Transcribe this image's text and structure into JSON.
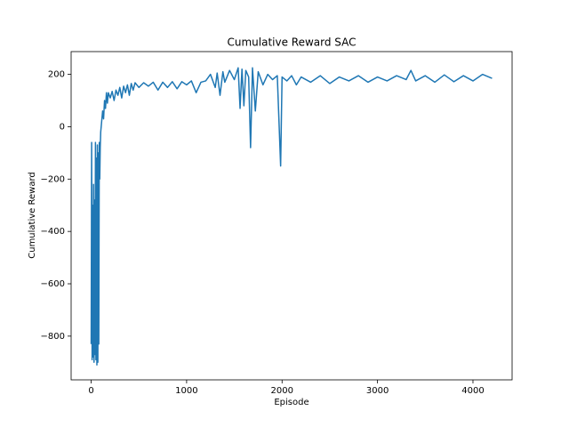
{
  "chart_data": {
    "type": "line",
    "title": "Cumulative Reward SAC",
    "x_label": "Episode",
    "y_label": "Cumulative Reward",
    "color": "#1f77b4",
    "grid": false,
    "x": [
      0,
      5,
      10,
      15,
      20,
      25,
      30,
      35,
      40,
      45,
      50,
      55,
      60,
      65,
      70,
      75,
      80,
      85,
      90,
      95,
      100,
      110,
      120,
      130,
      140,
      150,
      160,
      170,
      180,
      200,
      220,
      240,
      260,
      280,
      300,
      320,
      340,
      360,
      380,
      400,
      420,
      440,
      460,
      500,
      550,
      600,
      650,
      700,
      750,
      800,
      850,
      900,
      950,
      1000,
      1050,
      1100,
      1150,
      1200,
      1250,
      1300,
      1320,
      1350,
      1380,
      1400,
      1450,
      1500,
      1540,
      1560,
      1580,
      1600,
      1620,
      1650,
      1670,
      1690,
      1720,
      1750,
      1800,
      1850,
      1900,
      1950,
      1985,
      2000,
      2050,
      2100,
      2150,
      2200,
      2300,
      2400,
      2500,
      2600,
      2700,
      2800,
      2900,
      3000,
      3100,
      3200,
      3300,
      3350,
      3400,
      3500,
      3600,
      3700,
      3800,
      3900,
      4000,
      4100,
      4200
    ],
    "values": [
      -830,
      -60,
      -890,
      -300,
      -880,
      -220,
      -900,
      -280,
      -870,
      -60,
      -890,
      -120,
      -910,
      -70,
      -900,
      -100,
      -830,
      -60,
      -200,
      -80,
      -20,
      20,
      60,
      30,
      100,
      70,
      130,
      90,
      130,
      110,
      135,
      100,
      140,
      120,
      150,
      110,
      155,
      130,
      160,
      120,
      165,
      140,
      168,
      150,
      168,
      155,
      170,
      140,
      170,
      150,
      172,
      145,
      172,
      160,
      175,
      130,
      170,
      175,
      200,
      150,
      205,
      120,
      210,
      170,
      215,
      180,
      225,
      70,
      220,
      80,
      215,
      190,
      -80,
      225,
      60,
      210,
      160,
      200,
      180,
      195,
      -150,
      190,
      175,
      195,
      160,
      190,
      170,
      195,
      165,
      190,
      175,
      195,
      170,
      190,
      175,
      195,
      180,
      215,
      175,
      195,
      170,
      198,
      172,
      195,
      175,
      200,
      185
    ],
    "xlim": [
      -210,
      4410
    ],
    "ylim": [
      -967,
      287
    ],
    "xticks": [
      0,
      1000,
      2000,
      3000,
      4000
    ],
    "yticks": [
      {
        "value": -800,
        "label": "−800"
      },
      {
        "value": -600,
        "label": "−600"
      },
      {
        "value": -400,
        "label": "−400"
      },
      {
        "value": -200,
        "label": "−200"
      },
      0,
      200
    ]
  }
}
